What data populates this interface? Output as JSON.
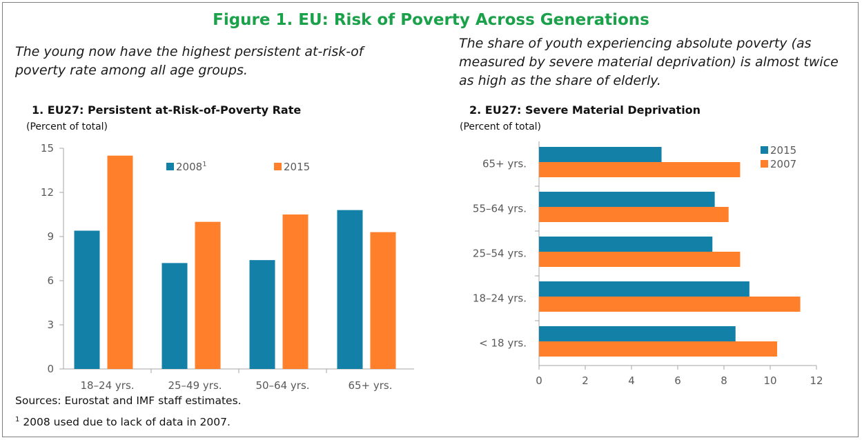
{
  "figure_title": "Figure 1. EU: Risk of Poverty Across Generations",
  "left_lead": "The young now have the highest persistent at-risk-of poverty rate among all age groups.",
  "right_lead": "The share of youth experiencing absolute poverty (as measured by severe material deprivation) is almost twice as high as the share of elderly.",
  "sources": "Sources: Eurostat and IMF staff estimates.",
  "footnote_mark": "1",
  "footnote": "2008 used due to lack of data in 2007.",
  "colors": {
    "teal": "#1380a8",
    "orange": "#ff7f2a",
    "title_green": "#1aa14a"
  },
  "chart_data": [
    {
      "type": "bar",
      "title": "1. EU27: Persistent at-Risk-of-Poverty Rate",
      "subtitle": "(Percent of total)",
      "categories": [
        "18–24 yrs.",
        "25–49 yrs.",
        "50–64 yrs.",
        "65+ yrs."
      ],
      "series": [
        {
          "name": "2008",
          "name_sup": "1",
          "color": "#1380a8",
          "values": [
            9.4,
            7.2,
            7.4,
            10.8
          ]
        },
        {
          "name": "2015",
          "color": "#ff7f2a",
          "values": [
            14.5,
            10.0,
            10.5,
            9.3
          ]
        }
      ],
      "ylim": [
        0,
        15
      ],
      "yticks": [
        0,
        3,
        6,
        9,
        12,
        15
      ],
      "legend": "top",
      "grid": false
    },
    {
      "type": "bar",
      "orientation": "horizontal",
      "title": "2. EU27: Severe Material Deprivation",
      "subtitle": "(Percent of total)",
      "categories": [
        "65+ yrs.",
        "55–64 yrs.",
        "25–54 yrs.",
        "18–24 yrs.",
        "< 18 yrs."
      ],
      "series": [
        {
          "name": "2015",
          "color": "#1380a8",
          "values": [
            5.3,
            7.6,
            7.5,
            9.1,
            8.5
          ]
        },
        {
          "name": "2007",
          "color": "#ff7f2a",
          "values": [
            8.7,
            8.2,
            8.7,
            11.3,
            10.3
          ]
        }
      ],
      "xlim": [
        0,
        12
      ],
      "xticks": [
        0,
        2,
        4,
        6,
        8,
        10,
        12
      ],
      "legend": "top-right",
      "grid": false
    }
  ]
}
